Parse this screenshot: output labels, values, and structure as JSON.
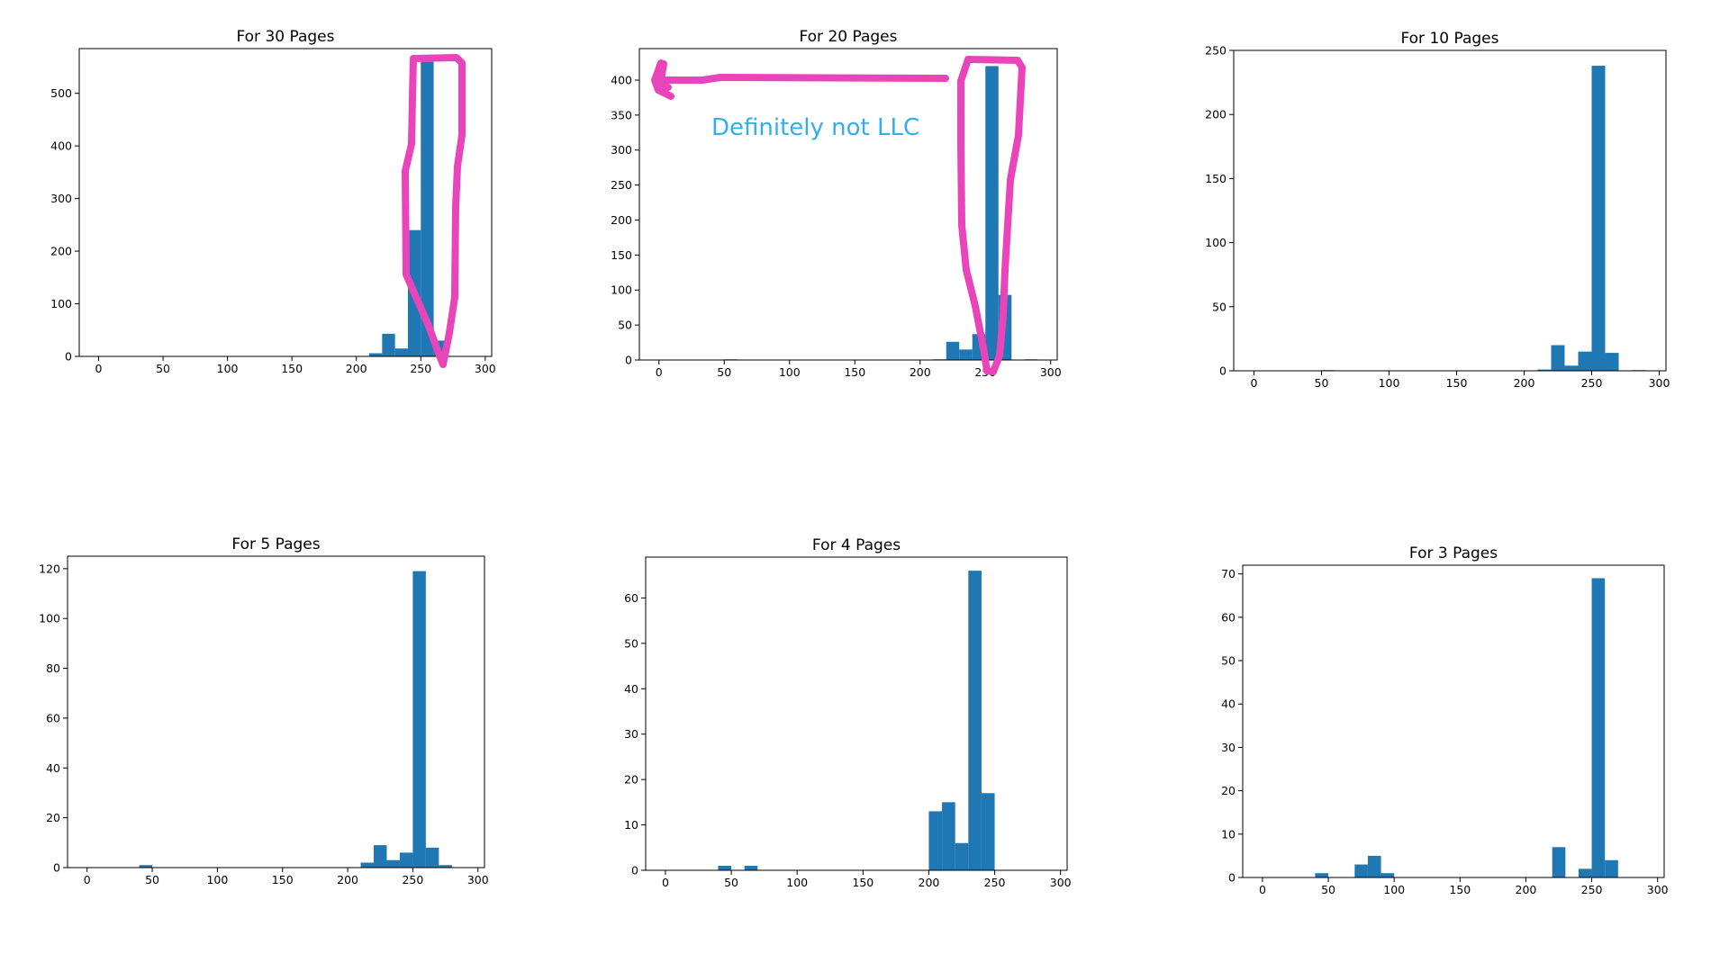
{
  "colors": {
    "bar": "#1f77b4",
    "highlight": "#e944b9",
    "annotation_text": "#33aee8"
  },
  "annotation": {
    "text": "Definitely not LLC"
  },
  "chart_data": [
    {
      "type": "bar",
      "title": "For 30 Pages",
      "xlim": [
        -15,
        305
      ],
      "ylim": [
        0,
        585
      ],
      "xticks": [
        0,
        50,
        100,
        150,
        200,
        250,
        300
      ],
      "yticks": [
        0,
        100,
        200,
        300,
        400,
        500
      ],
      "bin_width": 10,
      "x": [
        210,
        220,
        230,
        240,
        250,
        260
      ],
      "values": [
        6,
        43,
        15,
        240,
        560,
        30
      ]
    },
    {
      "type": "bar",
      "title": "For 20 Pages",
      "xlim": [
        -15,
        305
      ],
      "ylim": [
        0,
        445
      ],
      "xticks": [
        0,
        50,
        100,
        150,
        200,
        250,
        300
      ],
      "yticks": [
        0,
        50,
        100,
        150,
        200,
        250,
        300,
        350,
        400
      ],
      "bin_width": 10,
      "x": [
        50,
        210,
        220,
        230,
        240,
        250,
        260,
        280
      ],
      "values": [
        1,
        1,
        26,
        15,
        37,
        420,
        93,
        1
      ]
    },
    {
      "type": "bar",
      "title": "For 10 Pages",
      "xlim": [
        -15,
        305
      ],
      "ylim": [
        0,
        250
      ],
      "xticks": [
        0,
        50,
        100,
        150,
        200,
        250,
        300
      ],
      "yticks": [
        0,
        50,
        100,
        150,
        200,
        250
      ],
      "bin_width": 10,
      "x": [
        50,
        210,
        220,
        230,
        240,
        250,
        260,
        280
      ],
      "values": [
        0.5,
        1,
        20,
        4,
        15,
        238,
        14,
        0.5
      ]
    },
    {
      "type": "bar",
      "title": "For 5 Pages",
      "xlim": [
        -15,
        305
      ],
      "ylim": [
        0,
        125
      ],
      "xticks": [
        0,
        50,
        100,
        150,
        200,
        250,
        300
      ],
      "yticks": [
        0,
        20,
        40,
        60,
        80,
        100,
        120
      ],
      "bin_width": 10,
      "x": [
        40,
        210,
        220,
        230,
        240,
        250,
        260,
        270
      ],
      "values": [
        1,
        2,
        9,
        3,
        6,
        119,
        8,
        1
      ]
    },
    {
      "type": "bar",
      "title": "For 4 Pages",
      "xlim": [
        -15,
        305
      ],
      "ylim": [
        0,
        69
      ],
      "xticks": [
        0,
        50,
        100,
        150,
        200,
        250,
        300
      ],
      "yticks": [
        0,
        10,
        20,
        30,
        40,
        50,
        60
      ],
      "bin_width": 10,
      "x": [
        40,
        60,
        200,
        210,
        220,
        230,
        240
      ],
      "values": [
        1,
        1,
        13,
        15,
        6,
        66,
        17
      ]
    },
    {
      "type": "bar",
      "title": "For 3 Pages",
      "xlim": [
        -15,
        305
      ],
      "ylim": [
        0,
        72
      ],
      "xticks": [
        0,
        50,
        100,
        150,
        200,
        250,
        300
      ],
      "yticks": [
        0,
        10,
        20,
        30,
        40,
        50,
        60,
        70
      ],
      "bin_width": 10,
      "x": [
        40,
        70,
        80,
        90,
        220,
        240,
        250,
        260
      ],
      "values": [
        1,
        3,
        5,
        1,
        7,
        2,
        69,
        4
      ]
    }
  ]
}
